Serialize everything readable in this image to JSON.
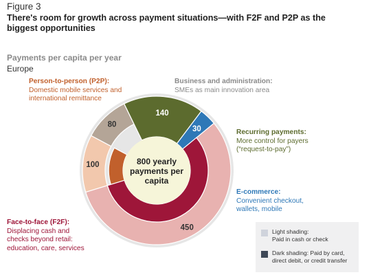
{
  "figure_label": "Figure 3",
  "title": "There's room for growth across payment situations—with F2F and P2P as the biggest opportunities",
  "subtitle": "Payments per capita per year",
  "region": "Europe",
  "center_label": [
    "800 yearly",
    "payments per",
    "capita"
  ],
  "segment_labels": [
    {
      "title": "Person-to-person (P2P):",
      "desc": [
        "Domestic mobile services and",
        "international remittance"
      ],
      "color": "#c1602c"
    },
    {
      "title": "Business and administration:",
      "desc": [
        "SMEs as main innovation area"
      ],
      "color": "#8a8a8a"
    },
    {
      "title": "Recurring payments:",
      "desc": [
        "More control for payers",
        "(“request-to-pay”)"
      ],
      "color": "#5c6b2e"
    },
    {
      "title": "E-commerce:",
      "desc": [
        "Convenient checkout,",
        "wallets, mobile"
      ],
      "color": "#2e78b7"
    },
    {
      "title": "Face-to-face (F2F):",
      "desc": [
        "Displacing cash and",
        "checks beyond retail:",
        "education, care, services"
      ],
      "color": "#9e1639"
    }
  ],
  "legend": {
    "light": [
      "Light shading:",
      "Paid in cash or check"
    ],
    "dark": [
      "Dark shading: Paid by card,",
      "direct debit, or credit transfer"
    ],
    "light_color": "#cfd3dc",
    "dark_color": "#3e4857"
  },
  "chart_data": {
    "type": "pie",
    "total": 800,
    "segments": [
      {
        "name": "Person-to-person (P2P)",
        "value": 100,
        "dark_share": 0.3,
        "light_color": "#f2c8ad",
        "dark_color": "#c1602c"
      },
      {
        "name": "Business and administration",
        "value": 80,
        "dark_share": 0.0,
        "light_color": "#b4a597",
        "dark_color": "#8f7f71"
      },
      {
        "name": "Recurring payments",
        "value": 140,
        "dark_share": 1.0,
        "light_color": "#66763a",
        "dark_color": "#5c6b2e"
      },
      {
        "name": "E-commerce",
        "value": 30,
        "dark_share": 1.0,
        "light_color": "#a9c8e6",
        "dark_color": "#2e78b7"
      },
      {
        "name": "Face-to-face (F2F)",
        "value": 450,
        "dark_share": 0.6,
        "light_color": "#e8b2b0",
        "dark_color": "#9e1639"
      }
    ]
  }
}
